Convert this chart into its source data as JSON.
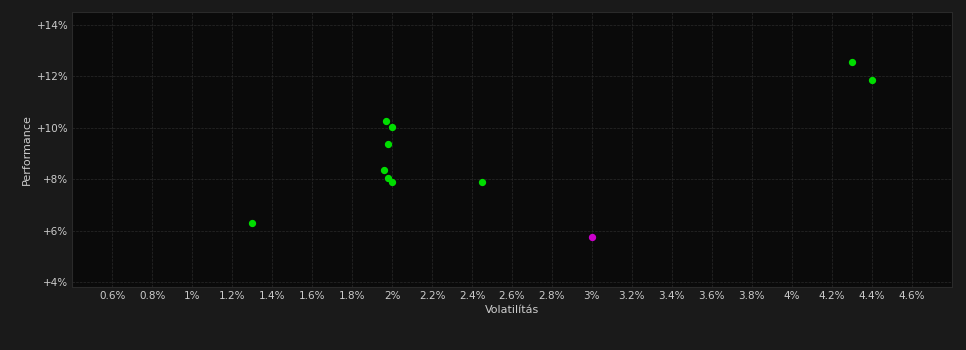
{
  "background_color": "#1a1a1a",
  "plot_bg_color": "#0a0a0a",
  "grid_color": "#2a2a2a",
  "text_color": "#cccccc",
  "xlabel": "Volatilítás",
  "ylabel": "Performance",
  "xlim": [
    0.004,
    0.048
  ],
  "ylim": [
    0.038,
    0.145
  ],
  "xtick_values": [
    0.006,
    0.008,
    0.01,
    0.012,
    0.014,
    0.016,
    0.018,
    0.02,
    0.022,
    0.024,
    0.026,
    0.028,
    0.03,
    0.032,
    0.034,
    0.036,
    0.038,
    0.04,
    0.042,
    0.044,
    0.046
  ],
  "ytick_values": [
    0.04,
    0.06,
    0.08,
    0.1,
    0.12,
    0.14
  ],
  "green_points": [
    [
      0.0197,
      0.1025
    ],
    [
      0.02,
      0.1005
    ],
    [
      0.0198,
      0.0935
    ],
    [
      0.0196,
      0.0835
    ],
    [
      0.0198,
      0.0805
    ],
    [
      0.02,
      0.079
    ],
    [
      0.013,
      0.063
    ],
    [
      0.0245,
      0.079
    ],
    [
      0.043,
      0.1255
    ],
    [
      0.044,
      0.1185
    ]
  ],
  "magenta_points": [
    [
      0.03,
      0.0575
    ]
  ],
  "green_color": "#00dd00",
  "magenta_color": "#cc00cc",
  "point_size": 18,
  "font_size_labels": 8,
  "font_size_ticks": 7.5
}
